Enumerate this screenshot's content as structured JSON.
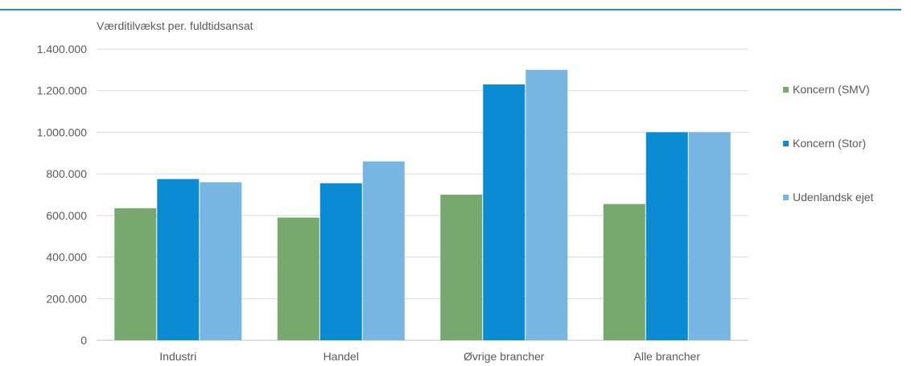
{
  "chart_data": {
    "type": "bar",
    "ylabel": "Værditilvækst per. fuldtidsansat",
    "ylim": [
      0,
      1400000
    ],
    "yticks": [
      0,
      200000,
      400000,
      600000,
      800000,
      1000000,
      1200000,
      1400000
    ],
    "ytick_labels": [
      "0",
      "200.000",
      "400.000",
      "600.000",
      "800.000",
      "1.000.000",
      "1.200.000",
      "1.400.000"
    ],
    "categories": [
      "Industri",
      "Handel",
      "Øvrige brancher",
      "Alle brancher"
    ],
    "series": [
      {
        "name": "Koncern (SMV)",
        "color": "#77a96f",
        "values": [
          635000,
          590000,
          700000,
          655000
        ]
      },
      {
        "name": "Koncern (Stor)",
        "color": "#0a8bd2",
        "values": [
          775000,
          755000,
          1230000,
          1000000
        ]
      },
      {
        "name": "Udenlandsk ejet",
        "color": "#77b6e3",
        "values": [
          760000,
          860000,
          1300000,
          1000000
        ]
      }
    ],
    "grid": true,
    "legend_position": "right"
  }
}
